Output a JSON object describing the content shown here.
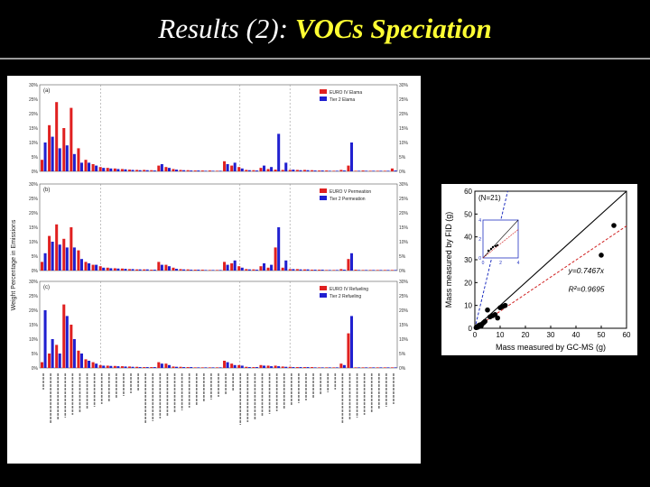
{
  "slide": {
    "title_prefix": "Results (2): ",
    "title_highlight": "VOCs Speciation"
  },
  "chart_data": [
    {
      "type": "bar",
      "title": "",
      "ylabel": "Weight Percentage in Emissions",
      "ylim": [
        0,
        30
      ],
      "yticks": [
        "0%",
        "5%",
        "10%",
        "15%",
        "20%",
        "25%",
        "30%"
      ],
      "series_colors": [
        "#e02020",
        "#2020d0"
      ],
      "panels": [
        {
          "label": "(a)",
          "series": [
            {
              "name": "EURO IV Elama",
              "values": [
                4.0,
                16.0,
                24.0,
                15.0,
                22.0,
                8.0,
                4.0,
                2.5,
                1.5,
                1.2,
                1.0,
                0.8,
                0.6,
                0.5,
                0.5,
                0.4,
                2.0,
                1.5,
                0.8,
                0.5,
                0.4,
                0.3,
                0.3,
                0.3,
                0.2,
                3.5,
                2.0,
                1.5,
                0.5,
                0.4,
                1.2,
                0.8,
                0.6,
                0.5,
                0.5,
                0.5,
                0.5,
                0.4,
                0.3,
                0.3,
                0.2,
                0.5,
                2.0,
                0.2,
                0.3,
                0.2,
                0.2,
                0.2,
                1.0
              ]
            },
            {
              "name": "Tier 2 Elama",
              "values": [
                10.0,
                12.0,
                8.0,
                9.0,
                6.0,
                3.0,
                3.0,
                2.0,
                1.2,
                1.0,
                0.8,
                0.7,
                0.5,
                0.4,
                0.4,
                0.3,
                2.5,
                1.2,
                0.6,
                0.4,
                0.3,
                0.3,
                0.2,
                0.2,
                0.2,
                2.5,
                3.0,
                1.0,
                0.4,
                0.3,
                2.0,
                1.5,
                13.0,
                3.0,
                0.6,
                0.4,
                0.4,
                0.3,
                0.3,
                0.2,
                0.2,
                0.3,
                10.0,
                0.2,
                0.2,
                0.2,
                0.2,
                0.2,
                0.3
              ]
            }
          ]
        },
        {
          "label": "(b)",
          "series": [
            {
              "name": "EURO V Permeation",
              "values": [
                3.0,
                12.0,
                16.0,
                11.0,
                15.0,
                7.0,
                3.0,
                2.0,
                1.5,
                1.0,
                0.8,
                0.7,
                0.5,
                0.4,
                0.4,
                0.3,
                3.0,
                2.0,
                1.0,
                0.5,
                0.4,
                0.3,
                0.3,
                0.2,
                0.2,
                3.0,
                2.5,
                1.5,
                0.5,
                0.4,
                1.5,
                1.0,
                8.0,
                1.0,
                0.5,
                0.5,
                0.4,
                0.3,
                0.3,
                0.2,
                0.2,
                0.5,
                4.0,
                0.3,
                0.2,
                0.2,
                0.2,
                0.2,
                0.2
              ]
            },
            {
              "name": "Tier 2 Permeation",
              "values": [
                6.0,
                10.0,
                9.0,
                8.0,
                8.0,
                4.0,
                2.5,
                2.0,
                1.0,
                0.8,
                0.7,
                0.6,
                0.5,
                0.4,
                0.4,
                0.3,
                2.0,
                1.5,
                0.6,
                0.4,
                0.3,
                0.3,
                0.2,
                0.2,
                0.2,
                2.0,
                3.5,
                1.0,
                0.4,
                0.3,
                2.5,
                2.0,
                15.0,
                3.5,
                0.5,
                0.4,
                0.4,
                0.3,
                0.3,
                0.2,
                0.2,
                0.3,
                6.0,
                0.2,
                0.2,
                0.2,
                0.2,
                0.2,
                0.2
              ]
            }
          ]
        },
        {
          "label": "(c)",
          "series": [
            {
              "name": "EURO IV Refueling",
              "values": [
                2.0,
                5.0,
                8.0,
                22.0,
                15.0,
                6.0,
                3.0,
                2.0,
                1.0,
                0.8,
                0.7,
                0.6,
                0.5,
                0.4,
                0.3,
                0.3,
                2.0,
                1.5,
                0.5,
                0.4,
                0.3,
                0.2,
                0.2,
                0.2,
                0.2,
                2.5,
                1.5,
                1.0,
                0.4,
                0.3,
                1.0,
                0.8,
                0.8,
                0.5,
                0.4,
                0.3,
                0.3,
                0.3,
                0.2,
                0.2,
                0.2,
                1.5,
                12.0,
                0.2,
                0.2,
                0.2,
                0.2,
                0.2,
                0.2
              ]
            },
            {
              "name": "Tier 2 Refueling",
              "values": [
                20.0,
                10.0,
                5.0,
                18.0,
                10.0,
                5.0,
                2.5,
                1.5,
                0.8,
                0.7,
                0.6,
                0.5,
                0.4,
                0.3,
                0.3,
                0.3,
                1.5,
                1.0,
                0.4,
                0.3,
                0.3,
                0.2,
                0.2,
                0.2,
                0.2,
                2.0,
                1.0,
                0.8,
                0.3,
                0.3,
                0.8,
                0.6,
                0.6,
                0.4,
                0.3,
                0.3,
                0.3,
                0.2,
                0.2,
                0.2,
                0.2,
                1.0,
                18.0,
                0.2,
                0.2,
                0.2,
                0.2,
                0.2,
                0.2
              ]
            }
          ]
        }
      ]
    },
    {
      "type": "scatter",
      "title": "",
      "annotation": "(N=21)",
      "xlabel": "Mass measured by GC-MS (g)",
      "ylabel": "Mass measured by FID (g)",
      "xlim": [
        0,
        60
      ],
      "ylim": [
        0,
        60
      ],
      "xticks": [
        0,
        10,
        20,
        30,
        40,
        50,
        60
      ],
      "yticks": [
        0,
        10,
        20,
        30,
        40,
        50,
        60
      ],
      "fit_equation": "y=0.7467x",
      "r_squared_label": "R²=0.9695",
      "fit_slope": 0.7467,
      "points": [
        {
          "x": 0.5,
          "y": 0.3
        },
        {
          "x": 1.0,
          "y": 0.8
        },
        {
          "x": 1.5,
          "y": 1.2
        },
        {
          "x": 2.0,
          "y": 1.5
        },
        {
          "x": 2.5,
          "y": 1.0
        },
        {
          "x": 3.0,
          "y": 2.0
        },
        {
          "x": 4.0,
          "y": 3.0
        },
        {
          "x": 5.0,
          "y": 8.0
        },
        {
          "x": 6.0,
          "y": 5.0
        },
        {
          "x": 8.0,
          "y": 6.0
        },
        {
          "x": 10.0,
          "y": 9.0
        },
        {
          "x": 12.0,
          "y": 10.0
        },
        {
          "x": 1.2,
          "y": 0.5
        },
        {
          "x": 0.8,
          "y": 0.4
        },
        {
          "x": 1.8,
          "y": 1.1
        },
        {
          "x": 3.5,
          "y": 2.5
        },
        {
          "x": 7.0,
          "y": 5.5
        },
        {
          "x": 9.0,
          "y": 4.5
        },
        {
          "x": 11.0,
          "y": 9.5
        },
        {
          "x": 50.0,
          "y": 32.0
        },
        {
          "x": 55.0,
          "y": 45.0
        }
      ],
      "inset": {
        "xticks": [
          0,
          2,
          4
        ],
        "yticks": [
          0,
          2,
          4
        ]
      }
    }
  ]
}
